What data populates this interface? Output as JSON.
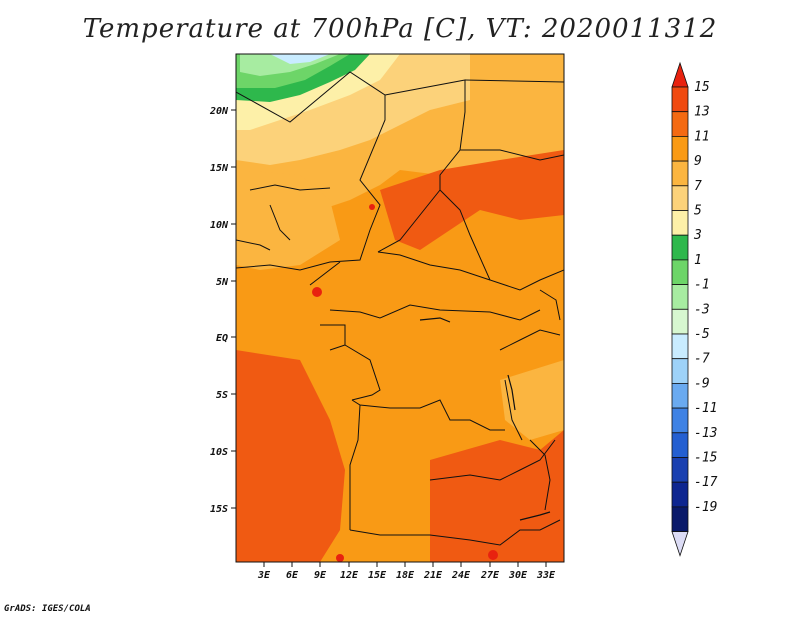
{
  "title": "Temperature at 700hPa [C], VT: 2020011312",
  "credit": "GrADS: IGES/COLA",
  "lat_labels": [
    "20N",
    "15N",
    "10N",
    "5N",
    "EQ",
    "5S",
    "10S",
    "15S"
  ],
  "lon_labels": [
    "3E",
    "6E",
    "9E",
    "12E",
    "15E",
    "18E",
    "21E",
    "24E",
    "27E",
    "30E",
    "33E"
  ],
  "colorbar": {
    "labels": [
      "15",
      "13",
      "11",
      "9",
      "7",
      "5",
      "3",
      "1",
      "-1",
      "-3",
      "-5",
      "-7",
      "-9",
      "-11",
      "-13",
      "-15",
      "-17",
      "-19"
    ],
    "colors": [
      "#e8220f",
      "#f04a10",
      "#f46a12",
      "#f99a15",
      "#fbb540",
      "#fcd27a",
      "#fdf0a8",
      "#2eb84c",
      "#6dd568",
      "#a7eca1",
      "#d7f7d0",
      "#c9ecff",
      "#9ed2f8",
      "#6aaaf0",
      "#3f82e4",
      "#245fd1",
      "#1a40b0",
      "#0e2690",
      "#0a1a6a",
      "#dcdcf5"
    ]
  },
  "palette": {
    "red": "#e8220f",
    "orange_dark": "#f05a12",
    "orange": "#f99a15",
    "light_orange": "#fbb540",
    "pale": "#fcd27a",
    "cream": "#fdf0a8",
    "green_dark": "#2eb84c",
    "green": "#6dd568",
    "green_light": "#a7eca1",
    "sky": "#c9ecff"
  }
}
